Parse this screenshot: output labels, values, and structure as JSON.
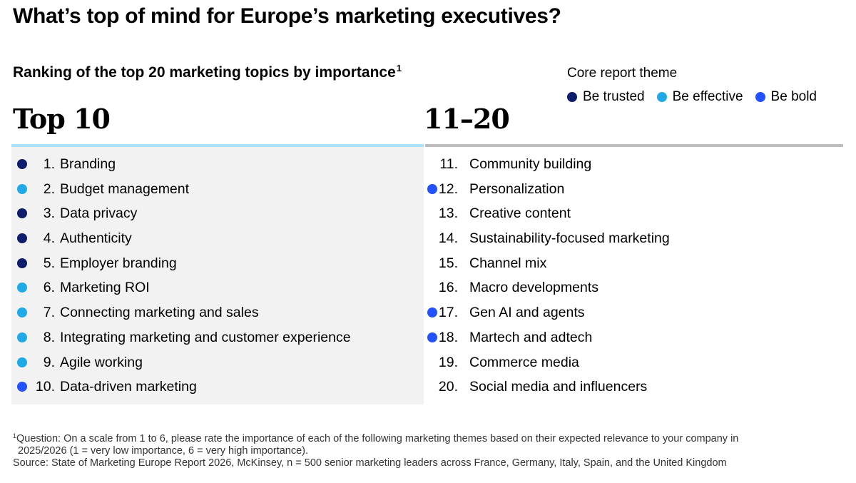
{
  "title": "What’s top of mind for Europe’s marketing executives?",
  "subtitle": "Ranking of the top 20 marketing topics by importance",
  "subtitle_footnote_mark": "1",
  "legend": {
    "title": "Core report theme",
    "items": [
      {
        "label": "Be trusted",
        "color": "#0d1d6b"
      },
      {
        "label": "Be effective",
        "color": "#1fa9e6"
      },
      {
        "label": "Be bold",
        "color": "#2251ff"
      }
    ]
  },
  "columns": [
    {
      "heading": "Top 10",
      "items": [
        {
          "rank": "1.",
          "label": "Branding",
          "theme": "Be trusted",
          "color": "#0d1d6b"
        },
        {
          "rank": "2.",
          "label": "Budget management",
          "theme": "Be effective",
          "color": "#1fa9e6"
        },
        {
          "rank": "3.",
          "label": "Data privacy",
          "theme": "Be trusted",
          "color": "#0d1d6b"
        },
        {
          "rank": "4.",
          "label": "Authenticity",
          "theme": "Be trusted",
          "color": "#0d1d6b"
        },
        {
          "rank": "5.",
          "label": "Employer branding",
          "theme": "Be trusted",
          "color": "#0d1d6b"
        },
        {
          "rank": "6.",
          "label": "Marketing ROI",
          "theme": "Be effective",
          "color": "#1fa9e6"
        },
        {
          "rank": "7.",
          "label": "Connecting marketing and sales",
          "theme": "Be effective",
          "color": "#1fa9e6"
        },
        {
          "rank": "8.",
          "label": "Integrating marketing and customer experience",
          "theme": "Be effective",
          "color": "#1fa9e6"
        },
        {
          "rank": "9.",
          "label": "Agile working",
          "theme": "Be effective",
          "color": "#1fa9e6"
        },
        {
          "rank": "10.",
          "label": "Data-driven marketing",
          "theme": "Be bold",
          "color": "#2251ff"
        }
      ]
    },
    {
      "heading": "11–20",
      "items": [
        {
          "rank": "11.",
          "label": "Community building",
          "theme": null,
          "color": null
        },
        {
          "rank": "12.",
          "label": "Personalization",
          "theme": "Be bold",
          "color": "#2251ff"
        },
        {
          "rank": "13.",
          "label": "Creative content",
          "theme": null,
          "color": null
        },
        {
          "rank": "14.",
          "label": "Sustainability-focused marketing",
          "theme": null,
          "color": null
        },
        {
          "rank": "15.",
          "label": "Channel mix",
          "theme": null,
          "color": null
        },
        {
          "rank": "16.",
          "label": "Macro developments",
          "theme": null,
          "color": null
        },
        {
          "rank": "17.",
          "label": "Gen AI and agents",
          "theme": "Be bold",
          "color": "#2251ff"
        },
        {
          "rank": "18.",
          "label": "Martech and adtech",
          "theme": "Be bold",
          "color": "#2251ff"
        },
        {
          "rank": "19.",
          "label": "Commerce media",
          "theme": null,
          "color": null
        },
        {
          "rank": "20.",
          "label": "Social media and influencers",
          "theme": null,
          "color": null
        }
      ]
    }
  ],
  "footnote": {
    "mark": "1",
    "line1": "Question: On a scale from 1 to 6, please rate the importance of each of the following marketing themes based on their expected relevance to your company in",
    "line2": "2025/2026 (1 = very low importance, 6 = very high importance).",
    "source": "Source: State of Marketing Europe Report 2026, McKinsey, n = 500 senior marketing leaders across France, Germany, Italy, Spain, and the United Kingdom"
  }
}
